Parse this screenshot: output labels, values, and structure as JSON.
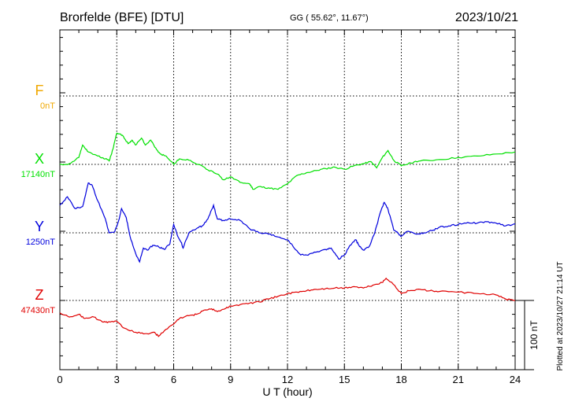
{
  "header": {
    "station": "Brorfelde (BFE)  [DTU]",
    "coords": "GG ( 55.62°,  11.67°)",
    "date": "2023/10/21"
  },
  "plotted_note": "Plotted at 2023/10/27 21:14 UT",
  "chart_data": {
    "type": "line",
    "title": "Brorfelde (BFE)  [DTU]",
    "xlabel": "U T (hour)",
    "xlim": [
      0,
      24
    ],
    "x_ticks": [
      "0",
      "3",
      "6",
      "9",
      "12",
      "15",
      "18",
      "21",
      "24"
    ],
    "grid": true,
    "scale_bar": {
      "label": "100 nT",
      "value": 100
    },
    "series": [
      {
        "name": "F",
        "baseline_label": "0nT",
        "color": "#f0a800",
        "points": []
      },
      {
        "name": "X",
        "baseline_label": "17140nT",
        "color": "#00e000",
        "points": [
          [
            0,
            17140
          ],
          [
            0.5,
            17141
          ],
          [
            1,
            17150
          ],
          [
            1.2,
            17168
          ],
          [
            1.5,
            17158
          ],
          [
            2,
            17152
          ],
          [
            2.4,
            17148
          ],
          [
            2.6,
            17145
          ],
          [
            2.8,
            17162
          ],
          [
            3,
            17185
          ],
          [
            3.3,
            17182
          ],
          [
            3.6,
            17170
          ],
          [
            3.8,
            17175
          ],
          [
            4,
            17168
          ],
          [
            4.3,
            17178
          ],
          [
            4.5,
            17168
          ],
          [
            4.8,
            17175
          ],
          [
            5,
            17165
          ],
          [
            5.3,
            17155
          ],
          [
            5.6,
            17152
          ],
          [
            6,
            17140
          ],
          [
            6.3,
            17148
          ],
          [
            6.8,
            17146
          ],
          [
            7.3,
            17140
          ],
          [
            7.8,
            17132
          ],
          [
            8.3,
            17126
          ],
          [
            8.6,
            17118
          ],
          [
            9,
            17122
          ],
          [
            9.5,
            17114
          ],
          [
            10,
            17112
          ],
          [
            10.2,
            17104
          ],
          [
            10.5,
            17108
          ],
          [
            11,
            17106
          ],
          [
            11.5,
            17104
          ],
          [
            12,
            17112
          ],
          [
            12.5,
            17124
          ],
          [
            13,
            17128
          ],
          [
            13.5,
            17131
          ],
          [
            14,
            17134
          ],
          [
            14.5,
            17136
          ],
          [
            15,
            17133
          ],
          [
            15.5,
            17138
          ],
          [
            16,
            17141
          ],
          [
            16.4,
            17144
          ],
          [
            16.7,
            17135
          ],
          [
            17,
            17150
          ],
          [
            17.3,
            17160
          ],
          [
            17.6,
            17146
          ],
          [
            18,
            17138
          ],
          [
            18.5,
            17142
          ],
          [
            19,
            17145
          ],
          [
            20,
            17147
          ],
          [
            21,
            17150
          ],
          [
            22,
            17152
          ],
          [
            23,
            17155
          ],
          [
            24,
            17158
          ]
        ]
      },
      {
        "name": "Y",
        "baseline_label": "1250nT",
        "color": "#0000dd",
        "points": [
          [
            0,
            1290
          ],
          [
            0.4,
            1302
          ],
          [
            0.8,
            1285
          ],
          [
            1.2,
            1288
          ],
          [
            1.5,
            1322
          ],
          [
            1.7,
            1319
          ],
          [
            2,
            1296
          ],
          [
            2.4,
            1270
          ],
          [
            2.6,
            1250
          ],
          [
            2.9,
            1252
          ],
          [
            3.1,
            1268
          ],
          [
            3.25,
            1285
          ],
          [
            3.5,
            1272
          ],
          [
            3.7,
            1245
          ],
          [
            4,
            1220
          ],
          [
            4.2,
            1208
          ],
          [
            4.4,
            1228
          ],
          [
            4.6,
            1225
          ],
          [
            4.9,
            1232
          ],
          [
            5.2,
            1230
          ],
          [
            5.5,
            1226
          ],
          [
            5.8,
            1234
          ],
          [
            6,
            1262
          ],
          [
            6.2,
            1246
          ],
          [
            6.4,
            1236
          ],
          [
            6.5,
            1228
          ],
          [
            6.8,
            1250
          ],
          [
            7.2,
            1256
          ],
          [
            7.5,
            1260
          ],
          [
            7.8,
            1270
          ],
          [
            8.1,
            1290
          ],
          [
            8.3,
            1270
          ],
          [
            8.6,
            1268
          ],
          [
            9,
            1270
          ],
          [
            9.5,
            1268
          ],
          [
            10,
            1256
          ],
          [
            10.5,
            1250
          ],
          [
            11,
            1248
          ],
          [
            11.5,
            1244
          ],
          [
            12,
            1240
          ],
          [
            12.3,
            1230
          ],
          [
            12.7,
            1218
          ],
          [
            13,
            1218
          ],
          [
            13.5,
            1222
          ],
          [
            14,
            1226
          ],
          [
            14.3,
            1228
          ],
          [
            14.7,
            1212
          ],
          [
            15,
            1218
          ],
          [
            15.3,
            1232
          ],
          [
            15.6,
            1240
          ],
          [
            15.8,
            1230
          ],
          [
            16,
            1225
          ],
          [
            16.3,
            1230
          ],
          [
            16.6,
            1250
          ],
          [
            16.9,
            1280
          ],
          [
            17.1,
            1294
          ],
          [
            17.3,
            1284
          ],
          [
            17.6,
            1254
          ],
          [
            17.8,
            1250
          ],
          [
            18,
            1245
          ],
          [
            18.3,
            1252
          ],
          [
            18.8,
            1248
          ],
          [
            19.2,
            1250
          ],
          [
            19.7,
            1254
          ],
          [
            20,
            1258
          ],
          [
            20.5,
            1260
          ],
          [
            21,
            1262
          ],
          [
            21.5,
            1265
          ],
          [
            22,
            1264
          ],
          [
            22.5,
            1266
          ],
          [
            23,
            1264
          ],
          [
            23.5,
            1260
          ],
          [
            24,
            1263
          ]
        ]
      },
      {
        "name": "Z",
        "baseline_label": "47430nT",
        "color": "#e00000",
        "points": [
          [
            0,
            47412
          ],
          [
            0.5,
            47406
          ],
          [
            1,
            47410
          ],
          [
            1.3,
            47404
          ],
          [
            1.8,
            47406
          ],
          [
            2.2,
            47400
          ],
          [
            2.5,
            47398
          ],
          [
            3,
            47400
          ],
          [
            3.4,
            47390
          ],
          [
            4,
            47384
          ],
          [
            4.5,
            47382
          ],
          [
            5,
            47384
          ],
          [
            5.2,
            47378
          ],
          [
            5.5,
            47386
          ],
          [
            6,
            47396
          ],
          [
            6.3,
            47404
          ],
          [
            6.8,
            47408
          ],
          [
            7.2,
            47410
          ],
          [
            7.6,
            47416
          ],
          [
            8,
            47418
          ],
          [
            8.3,
            47414
          ],
          [
            8.7,
            47418
          ],
          [
            9,
            47422
          ],
          [
            9.5,
            47424
          ],
          [
            10,
            47426
          ],
          [
            10.5,
            47428
          ],
          [
            11,
            47432
          ],
          [
            11.5,
            47436
          ],
          [
            12,
            47440
          ],
          [
            12.5,
            47442
          ],
          [
            13,
            47444
          ],
          [
            13.5,
            47446
          ],
          [
            14,
            47447
          ],
          [
            14.5,
            47448
          ],
          [
            15,
            47448
          ],
          [
            15.5,
            47450
          ],
          [
            16,
            47448
          ],
          [
            16.5,
            47452
          ],
          [
            17,
            47456
          ],
          [
            17.2,
            47462
          ],
          [
            17.5,
            47456
          ],
          [
            17.8,
            47446
          ],
          [
            18,
            47440
          ],
          [
            18.4,
            47444
          ],
          [
            19,
            47446
          ],
          [
            19.5,
            47444
          ],
          [
            20,
            47443
          ],
          [
            21,
            47442
          ],
          [
            22,
            47440
          ],
          [
            23,
            47438
          ],
          [
            23.5,
            47432
          ],
          [
            24,
            47430
          ]
        ]
      }
    ]
  }
}
